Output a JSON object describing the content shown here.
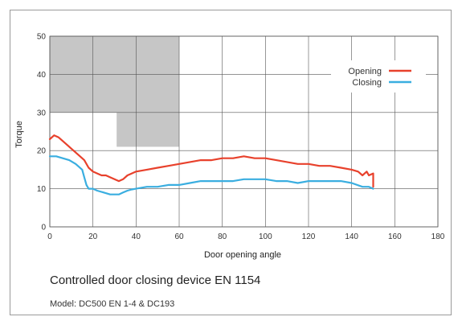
{
  "chart_data": {
    "type": "line",
    "xlabel": "Door opening angle",
    "ylabel": "Torque",
    "xlim": [
      0,
      180
    ],
    "ylim": [
      0,
      50
    ],
    "xticks": [
      0,
      20,
      40,
      60,
      80,
      100,
      120,
      140,
      160,
      180
    ],
    "yticks": [
      0,
      10,
      20,
      30,
      40,
      50
    ],
    "grid": true,
    "legend_position": "top-right",
    "shaded_regions": [
      {
        "x": [
          0,
          60
        ],
        "y": [
          30,
          50
        ]
      },
      {
        "x": [
          31,
          60
        ],
        "y": [
          21,
          30
        ]
      }
    ],
    "series": [
      {
        "name": "Opening",
        "color": "#e8412c",
        "x": [
          0,
          2,
          4,
          6,
          8,
          10,
          12,
          14,
          16,
          18,
          20,
          22,
          24,
          26,
          28,
          30,
          32,
          34,
          36,
          38,
          40,
          45,
          50,
          55,
          60,
          65,
          70,
          75,
          80,
          85,
          90,
          95,
          100,
          105,
          110,
          115,
          120,
          125,
          130,
          135,
          140,
          143,
          145,
          147,
          148,
          150,
          150
        ],
        "values": [
          23,
          24,
          23.5,
          22.5,
          21.5,
          20.5,
          19.5,
          18.5,
          17.5,
          15.5,
          14.5,
          14,
          13.5,
          13.5,
          13,
          12.5,
          12,
          12.5,
          13.5,
          14,
          14.5,
          15,
          15.5,
          16,
          16.5,
          17,
          17.5,
          17.5,
          18,
          18,
          18.5,
          18,
          18,
          17.5,
          17,
          16.5,
          16.5,
          16,
          16,
          15.5,
          15,
          14.5,
          13.5,
          14.5,
          13.5,
          14,
          10.5
        ]
      },
      {
        "name": "Closing",
        "color": "#3aaee0",
        "x": [
          0,
          3,
          6,
          9,
          12,
          15,
          16,
          17,
          18,
          20,
          22,
          25,
          28,
          30,
          32,
          34,
          36,
          38,
          40,
          45,
          50,
          55,
          60,
          65,
          70,
          75,
          80,
          85,
          90,
          95,
          100,
          105,
          110,
          115,
          120,
          125,
          130,
          135,
          140,
          145,
          148,
          150
        ],
        "values": [
          18.5,
          18.5,
          18,
          17.5,
          16.5,
          15,
          13,
          11,
          10,
          10,
          9.5,
          9,
          8.5,
          8.5,
          8.5,
          9,
          9.5,
          9.8,
          10,
          10.5,
          10.5,
          11,
          11,
          11.5,
          12,
          12,
          12,
          12,
          12.5,
          12.5,
          12.5,
          12,
          12,
          11.5,
          12,
          12,
          12,
          12,
          11.5,
          10.5,
          10.5,
          10
        ]
      }
    ]
  },
  "caption": {
    "title": "Controlled door closing device EN 1154",
    "subtitle": "Model: DC500 EN 1-4 & DC193"
  }
}
